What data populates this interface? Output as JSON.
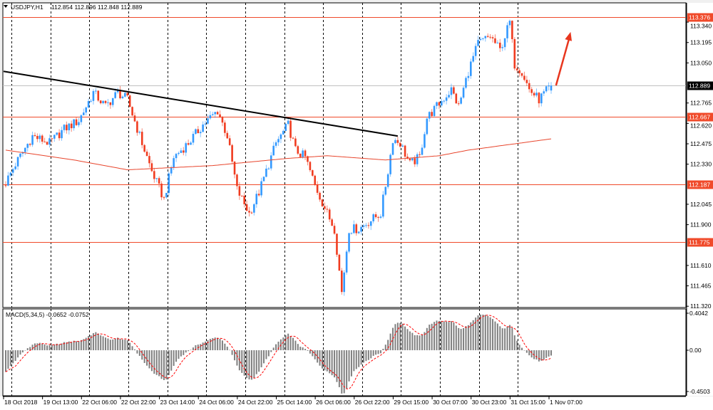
{
  "header": {
    "symbol": "USDJPY,H1",
    "ohlc": "112.854 112.896 112.848 112.889"
  },
  "colors": {
    "up": "#3399ff",
    "down": "#f03c20",
    "level": "#f04a2a",
    "ma": "#e8452c",
    "trend": "#000000",
    "arrow": "#e8361e",
    "macd_hist": "#808080",
    "signal": "#ff0000"
  },
  "chart_data": {
    "type": "candlestick",
    "title": "USDJPY,H1",
    "bars": 225,
    "price_path": [
      [
        0,
        112.2
      ],
      [
        4,
        112.33
      ],
      [
        11,
        112.53
      ],
      [
        18,
        112.48
      ],
      [
        24,
        112.58
      ],
      [
        30,
        112.64
      ],
      [
        36,
        112.84
      ],
      [
        41,
        112.74
      ],
      [
        46,
        112.84
      ],
      [
        50,
        112.79
      ],
      [
        56,
        112.48
      ],
      [
        60,
        112.28
      ],
      [
        65,
        112.08
      ],
      [
        69,
        112.38
      ],
      [
        75,
        112.48
      ],
      [
        81,
        112.61
      ],
      [
        87,
        112.71
      ],
      [
        91,
        112.53
      ],
      [
        95,
        112.15
      ],
      [
        100,
        111.98
      ],
      [
        104,
        112.13
      ],
      [
        107,
        112.28
      ],
      [
        111,
        112.48
      ],
      [
        116,
        112.61
      ],
      [
        119,
        112.43
      ],
      [
        123,
        112.38
      ],
      [
        127,
        112.18
      ],
      [
        132,
        111.98
      ],
      [
        135,
        111.87
      ],
      [
        138,
        111.42
      ],
      [
        141,
        111.87
      ],
      [
        145,
        111.87
      ],
      [
        149,
        111.92
      ],
      [
        154,
        111.98
      ],
      [
        157,
        112.28
      ],
      [
        159,
        112.51
      ],
      [
        162,
        112.48
      ],
      [
        166,
        112.33
      ],
      [
        170,
        112.38
      ],
      [
        173,
        112.66
      ],
      [
        178,
        112.76
      ],
      [
        183,
        112.86
      ],
      [
        186,
        112.74
      ],
      [
        190,
        112.99
      ],
      [
        194,
        113.19
      ],
      [
        199,
        113.24
      ],
      [
        203,
        113.14
      ],
      [
        207,
        113.34
      ],
      [
        209,
        113.04
      ],
      [
        212,
        112.99
      ],
      [
        215,
        112.86
      ],
      [
        219,
        112.79
      ],
      [
        224,
        112.889
      ]
    ],
    "moving_average": [
      [
        0,
        112.43
      ],
      [
        28,
        112.36
      ],
      [
        50,
        112.29
      ],
      [
        85,
        112.32
      ],
      [
        115,
        112.37
      ],
      [
        132,
        112.39
      ],
      [
        156,
        112.36
      ],
      [
        178,
        112.39
      ],
      [
        190,
        112.43
      ],
      [
        224,
        112.51
      ]
    ],
    "trendline": [
      [
        0,
        112.99
      ],
      [
        161,
        112.53
      ]
    ],
    "levels": [
      {
        "price": 113.376,
        "label": "113.376"
      },
      {
        "price": 112.667,
        "label": "112.667"
      },
      {
        "price": 112.187,
        "label": "112.187"
      },
      {
        "price": 111.775,
        "label": "111.775"
      }
    ],
    "current_price": {
      "price": 112.889,
      "label": "112.889"
    },
    "ylim": [
      111.311,
      113.477
    ],
    "y_ticks": [
      {
        "v": 113.34,
        "l": "113.340"
      },
      {
        "v": 113.195,
        "l": "113.195"
      },
      {
        "v": 113.05,
        "l": "113.050"
      },
      {
        "v": 112.765,
        "l": "112.765"
      },
      {
        "v": 112.62,
        "l": "112.620"
      },
      {
        "v": 112.475,
        "l": "112.475"
      },
      {
        "v": 112.33,
        "l": "112.330"
      },
      {
        "v": 112.045,
        "l": "112.045"
      },
      {
        "v": 111.9,
        "l": "111.900"
      },
      {
        "v": 111.61,
        "l": "111.610"
      },
      {
        "v": 111.465,
        "l": "111.465"
      },
      {
        "v": 111.32,
        "l": "111.320"
      }
    ],
    "x_ticks": [
      {
        "bar": 0,
        "l": "18 Oct 2018"
      },
      {
        "bar": 16,
        "l": "19 Oct 13:00"
      },
      {
        "bar": 32,
        "l": "22 Oct 06:00"
      },
      {
        "bar": 48,
        "l": "22 Oct 22:00"
      },
      {
        "bar": 64,
        "l": "23 Oct 14:00"
      },
      {
        "bar": 80,
        "l": "24 Oct 06:00"
      },
      {
        "bar": 96,
        "l": "24 Oct 22:00"
      },
      {
        "bar": 112,
        "l": "25 Oct 14:00"
      },
      {
        "bar": 128,
        "l": "26 Oct 06:00"
      },
      {
        "bar": 144,
        "l": "26 Oct 22:00"
      },
      {
        "bar": 160,
        "l": "29 Oct 15:00"
      },
      {
        "bar": 176,
        "l": "30 Oct 07:00"
      },
      {
        "bar": 192,
        "l": "30 Oct 23:00"
      },
      {
        "bar": 208,
        "l": "31 Oct 15:00"
      },
      {
        "bar": 224,
        "l": "1 Nov 07:00"
      }
    ],
    "arrow": {
      "from": [
        226,
        112.89
      ],
      "to": [
        232,
        113.27
      ],
      "direction": "up"
    },
    "macd": {
      "label": "MACD(5,34,5) -0.0652 -0.0752",
      "fast": 5,
      "slow": 34,
      "signal": 5,
      "ylim": [
        -0.497,
        0.451
      ],
      "y_ticks": [
        {
          "v": 0.4042,
          "l": "0.4042"
        },
        {
          "v": 0,
          "l": "0.00"
        },
        {
          "v": -0.4503,
          "l": "-0.4503"
        }
      ]
    }
  }
}
